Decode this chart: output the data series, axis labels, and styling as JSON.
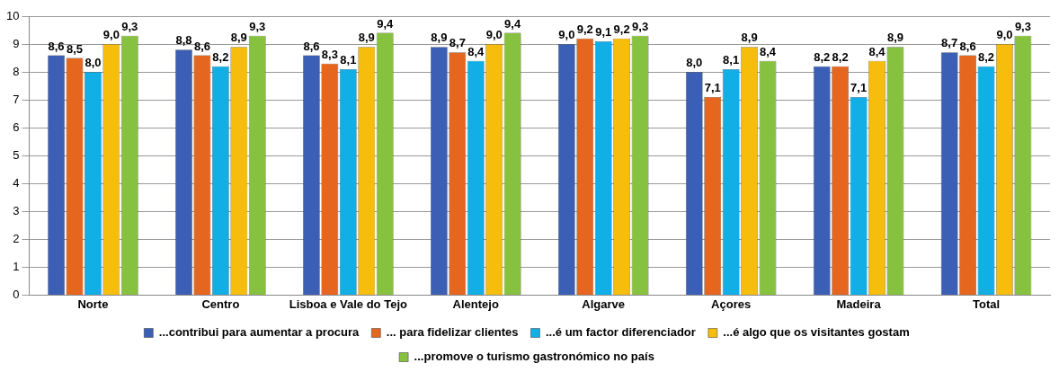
{
  "chart_data": {
    "type": "bar",
    "categories": [
      "Norte",
      "Centro",
      "Lisboa e Vale do Tejo",
      "Alentejo",
      "Algarve",
      "Açores",
      "Madeira",
      "Total"
    ],
    "series": [
      {
        "name": "...contribui para aumentar a procura",
        "color": "#3b5fb5",
        "values": [
          8.6,
          8.8,
          8.6,
          8.9,
          9.0,
          8.0,
          8.2,
          8.7
        ],
        "value_labels": [
          "8,6",
          "8,8",
          "8,6",
          "8,9",
          "9,0",
          "8,0",
          "8,2",
          "8,7"
        ]
      },
      {
        "name": "... para fidelizar clientes",
        "color": "#e5661f",
        "values": [
          8.5,
          8.6,
          8.3,
          8.7,
          9.2,
          7.1,
          8.2,
          8.6
        ],
        "value_labels": [
          "8,5",
          "8,6",
          "8,3",
          "8,7",
          "9,2",
          "7,1",
          "8,2",
          "8,6"
        ]
      },
      {
        "name": "...é um factor diferenciador",
        "color": "#12aee6",
        "values": [
          8.0,
          8.2,
          8.1,
          8.4,
          9.1,
          8.1,
          7.1,
          8.2
        ],
        "value_labels": [
          "8,0",
          "8,2",
          "8,1",
          "8,4",
          "9,1",
          "8,1",
          "7,1",
          "8,2"
        ]
      },
      {
        "name": "...é algo que os visitantes gostam",
        "color": "#f6bd0c",
        "values": [
          9.0,
          8.9,
          8.9,
          9.0,
          9.2,
          8.9,
          8.4,
          9.0
        ],
        "value_labels": [
          "9,0",
          "8,9",
          "8,9",
          "9,0",
          "9,2",
          "8,9",
          "8,4",
          "9,0"
        ]
      },
      {
        "name": "...promove o turismo gastronómico no país",
        "color": "#86c140",
        "values": [
          9.3,
          9.3,
          9.4,
          9.4,
          9.3,
          8.4,
          8.9,
          9.3
        ],
        "value_labels": [
          "9,3",
          "9,3",
          "9,4",
          "9,4",
          "9,3",
          "8,4",
          "8,9",
          "9,3"
        ]
      }
    ],
    "ylim": [
      0,
      10
    ],
    "yticks": [
      0,
      1,
      2,
      3,
      4,
      5,
      6,
      7,
      8,
      9,
      10
    ],
    "grid": "y",
    "legend": "bottom"
  }
}
